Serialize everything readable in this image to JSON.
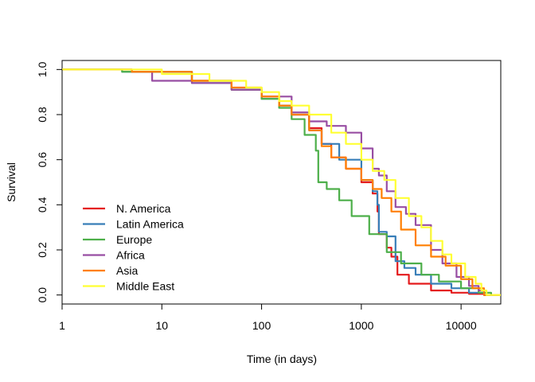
{
  "chart_data": {
    "type": "line",
    "step": true,
    "xlabel": "Time (in days)",
    "ylabel": "Survival",
    "x_scale": "log",
    "xlim": [
      1,
      25000
    ],
    "ylim": [
      -0.04,
      1.04
    ],
    "x_ticks": [
      {
        "value": 1,
        "label": "1"
      },
      {
        "value": 10,
        "label": "10"
      },
      {
        "value": 100,
        "label": "100"
      },
      {
        "value": 1000,
        "label": "1000"
      },
      {
        "value": 10000,
        "label": "10000"
      }
    ],
    "y_ticks": [
      {
        "value": 0.0,
        "label": "0.0"
      },
      {
        "value": 0.2,
        "label": "0.2"
      },
      {
        "value": 0.4,
        "label": "0.4"
      },
      {
        "value": 0.6,
        "label": "0.6"
      },
      {
        "value": 0.8,
        "label": "0.8"
      },
      {
        "value": 1.0,
        "label": "1.0"
      }
    ],
    "grid": false,
    "legend_position": "bottom-left",
    "series": [
      {
        "name": "N. America",
        "color": "#E41A1C",
        "points": [
          [
            1,
            1.0
          ],
          [
            5,
            0.99
          ],
          [
            20,
            0.95
          ],
          [
            50,
            0.91
          ],
          [
            100,
            0.88
          ],
          [
            150,
            0.84
          ],
          [
            200,
            0.8
          ],
          [
            300,
            0.74
          ],
          [
            400,
            0.67
          ],
          [
            500,
            0.61
          ],
          [
            700,
            0.56
          ],
          [
            1000,
            0.5
          ],
          [
            1300,
            0.45
          ],
          [
            1450,
            0.37
          ],
          [
            1500,
            0.27
          ],
          [
            1800,
            0.21
          ],
          [
            2000,
            0.17
          ],
          [
            2300,
            0.09
          ],
          [
            3000,
            0.05
          ],
          [
            5000,
            0.02
          ],
          [
            8000,
            0.01
          ],
          [
            12000,
            0.005
          ],
          [
            17000,
            0.0
          ],
          [
            25000,
            0.0
          ]
        ]
      },
      {
        "name": "Latin America",
        "color": "#377EB8",
        "points": [
          [
            1,
            1.0
          ],
          [
            4,
            0.99
          ],
          [
            20,
            0.94
          ],
          [
            50,
            0.91
          ],
          [
            100,
            0.87
          ],
          [
            150,
            0.84
          ],
          [
            200,
            0.8
          ],
          [
            300,
            0.73
          ],
          [
            400,
            0.67
          ],
          [
            600,
            0.6
          ],
          [
            1000,
            0.51
          ],
          [
            1300,
            0.46
          ],
          [
            1449,
            0.4
          ],
          [
            1500,
            0.28
          ],
          [
            1800,
            0.26
          ],
          [
            2200,
            0.15
          ],
          [
            2700,
            0.12
          ],
          [
            3500,
            0.09
          ],
          [
            5000,
            0.05
          ],
          [
            8000,
            0.03
          ],
          [
            12000,
            0.01
          ],
          [
            17000,
            0.0
          ],
          [
            25000,
            0.0
          ]
        ]
      },
      {
        "name": "Europe",
        "color": "#4DAF4A",
        "points": [
          [
            1,
            1.0
          ],
          [
            4,
            0.99
          ],
          [
            20,
            0.95
          ],
          [
            50,
            0.91
          ],
          [
            100,
            0.87
          ],
          [
            150,
            0.83
          ],
          [
            200,
            0.78
          ],
          [
            270,
            0.71
          ],
          [
            350,
            0.64
          ],
          [
            370,
            0.5
          ],
          [
            450,
            0.47
          ],
          [
            600,
            0.42
          ],
          [
            800,
            0.35
          ],
          [
            1200,
            0.27
          ],
          [
            1800,
            0.19
          ],
          [
            2500,
            0.14
          ],
          [
            4000,
            0.09
          ],
          [
            6000,
            0.06
          ],
          [
            10000,
            0.03
          ],
          [
            15000,
            0.01
          ],
          [
            20000,
            0.0
          ],
          [
            25000,
            0.0
          ]
        ]
      },
      {
        "name": "Africa",
        "color": "#984EA3",
        "points": [
          [
            1,
            1.0
          ],
          [
            5,
            0.99
          ],
          [
            8,
            0.95
          ],
          [
            20,
            0.94
          ],
          [
            50,
            0.91
          ],
          [
            100,
            0.88
          ],
          [
            200,
            0.81
          ],
          [
            300,
            0.77
          ],
          [
            450,
            0.75
          ],
          [
            700,
            0.72
          ],
          [
            1000,
            0.65
          ],
          [
            1300,
            0.56
          ],
          [
            1500,
            0.53
          ],
          [
            1800,
            0.46
          ],
          [
            2200,
            0.39
          ],
          [
            2800,
            0.36
          ],
          [
            3500,
            0.31
          ],
          [
            5000,
            0.2
          ],
          [
            6500,
            0.14
          ],
          [
            9000,
            0.08
          ],
          [
            12000,
            0.04
          ],
          [
            15000,
            0.02
          ],
          [
            17000,
            0.0
          ],
          [
            25000,
            0.0
          ]
        ]
      },
      {
        "name": "Asia",
        "color": "#FF7F00",
        "points": [
          [
            1,
            1.0
          ],
          [
            5,
            0.99
          ],
          [
            20,
            0.95
          ],
          [
            50,
            0.92
          ],
          [
            100,
            0.88
          ],
          [
            150,
            0.84
          ],
          [
            200,
            0.8
          ],
          [
            300,
            0.73
          ],
          [
            400,
            0.66
          ],
          [
            500,
            0.61
          ],
          [
            700,
            0.56
          ],
          [
            1000,
            0.51
          ],
          [
            1300,
            0.47
          ],
          [
            1600,
            0.43
          ],
          [
            2000,
            0.37
          ],
          [
            2500,
            0.29
          ],
          [
            3500,
            0.22
          ],
          [
            5000,
            0.17
          ],
          [
            7000,
            0.13
          ],
          [
            10000,
            0.07
          ],
          [
            13000,
            0.03
          ],
          [
            17000,
            0.0
          ],
          [
            25000,
            0.0
          ]
        ]
      },
      {
        "name": "Middle East",
        "color": "#FFFF33",
        "points": [
          [
            1,
            1.0
          ],
          [
            5,
            1.0
          ],
          [
            10,
            0.98
          ],
          [
            30,
            0.95
          ],
          [
            70,
            0.92
          ],
          [
            100,
            0.9
          ],
          [
            150,
            0.86
          ],
          [
            200,
            0.84
          ],
          [
            300,
            0.8
          ],
          [
            500,
            0.72
          ],
          [
            700,
            0.67
          ],
          [
            1000,
            0.6
          ],
          [
            1300,
            0.55
          ],
          [
            1700,
            0.51
          ],
          [
            2200,
            0.43
          ],
          [
            3000,
            0.35
          ],
          [
            4000,
            0.3
          ],
          [
            5000,
            0.24
          ],
          [
            6500,
            0.18
          ],
          [
            8000,
            0.14
          ],
          [
            11000,
            0.08
          ],
          [
            14000,
            0.05
          ],
          [
            16000,
            0.02
          ],
          [
            18000,
            0.0
          ],
          [
            25000,
            0.0
          ]
        ]
      }
    ]
  }
}
